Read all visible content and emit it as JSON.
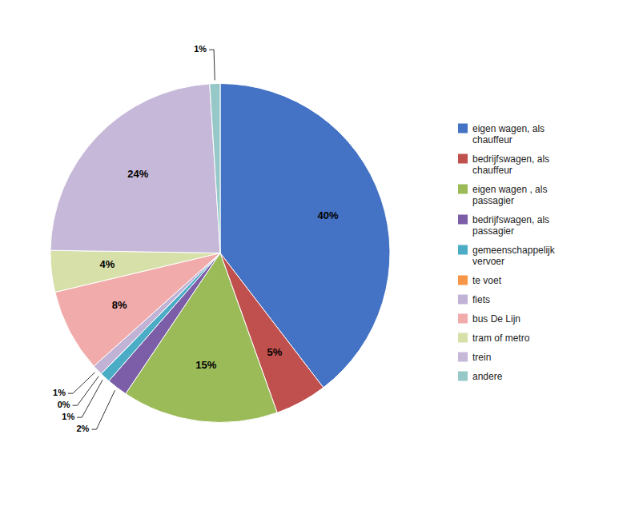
{
  "chart_data": {
    "type": "pie",
    "categories": [
      "eigen wagen, als\nchauffeur",
      "bedrijfswagen, als\nchauffeur",
      "eigen wagen , als\npassagier",
      "bedrijfswagen, als\npassagier",
      "gemeenschappelijk\nvervoer",
      "te voet",
      "fiets",
      "bus De Lijn",
      "tram of metro",
      "trein",
      "andere"
    ],
    "values": [
      40,
      5,
      15,
      2,
      1,
      0,
      1,
      8,
      4,
      24,
      1
    ],
    "value_labels": [
      "40%",
      "5%",
      "15%",
      "2%",
      "1%",
      "0%",
      "1%",
      "8%",
      "4%",
      "24%",
      "1%"
    ],
    "colors": [
      "#4472C4",
      "#C0504D",
      "#9BBB59",
      "#7B5EA7",
      "#4BACC6",
      "#F79646",
      "#C0B3D5",
      "#F2ABAB",
      "#D6E0A8",
      "#C6B8D9",
      "#96C8C8"
    ],
    "data_labels": true,
    "legend": "right"
  }
}
